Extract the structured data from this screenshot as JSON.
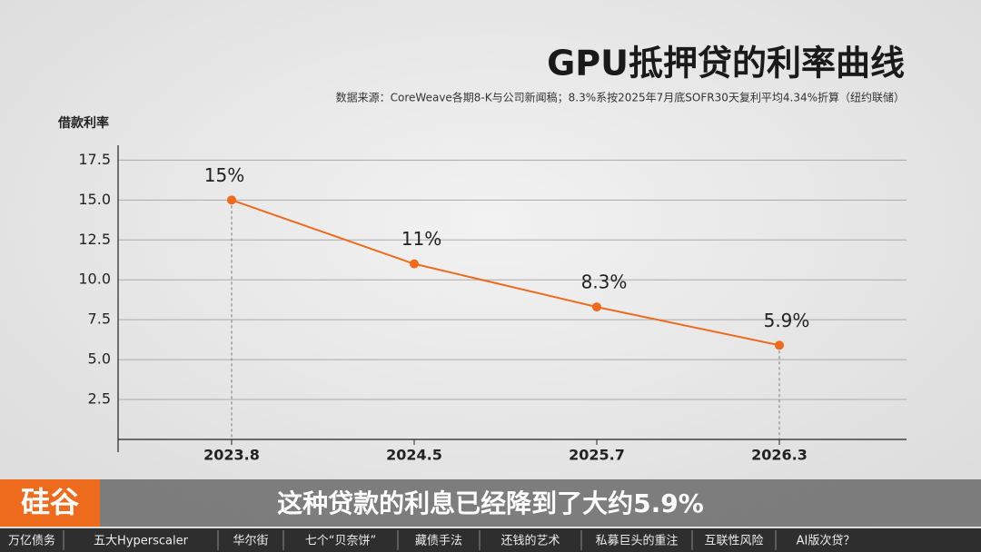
{
  "chart_data": {
    "type": "line",
    "title": "GPU抵押贷的利率曲线",
    "subtitle": "数据来源：CoreWeave各期8-K与公司新闻稿；8.3%系按2025年7月底SOFR30天复利平均4.34%折算（纽约联储）",
    "y_label": "借款利率",
    "categories": [
      "2023.8",
      "2024.5",
      "2025.7",
      "2026.3"
    ],
    "values": [
      15,
      11,
      8.3,
      5.9
    ],
    "value_labels": [
      "15%",
      "11%",
      "8.3%",
      "5.9%"
    ],
    "color": "#ee6a1c",
    "ylim": [
      0,
      19
    ],
    "yticks": [
      {
        "value": 2.5,
        "label": "2.5"
      },
      {
        "value": 5,
        "label": "5.0"
      },
      {
        "value": 7.5,
        "label": "7.5"
      },
      {
        "value": 10,
        "label": "10.0"
      },
      {
        "value": 12.5,
        "label": "12.5"
      },
      {
        "value": 15,
        "label": "15.0"
      },
      {
        "value": 17.5,
        "label": "17.5"
      }
    ],
    "grid": true
  },
  "logo": "硅谷",
  "caption": "这种贷款的利息已经降到了大约5.9%",
  "nav": [
    "万亿债务",
    "五大Hyperscaler",
    "华尔街",
    "七个“贝奈饼”",
    "藏债手法",
    "还钱的艺术",
    "私募巨头的重注",
    "互联性风险",
    "AI版次贷？"
  ]
}
